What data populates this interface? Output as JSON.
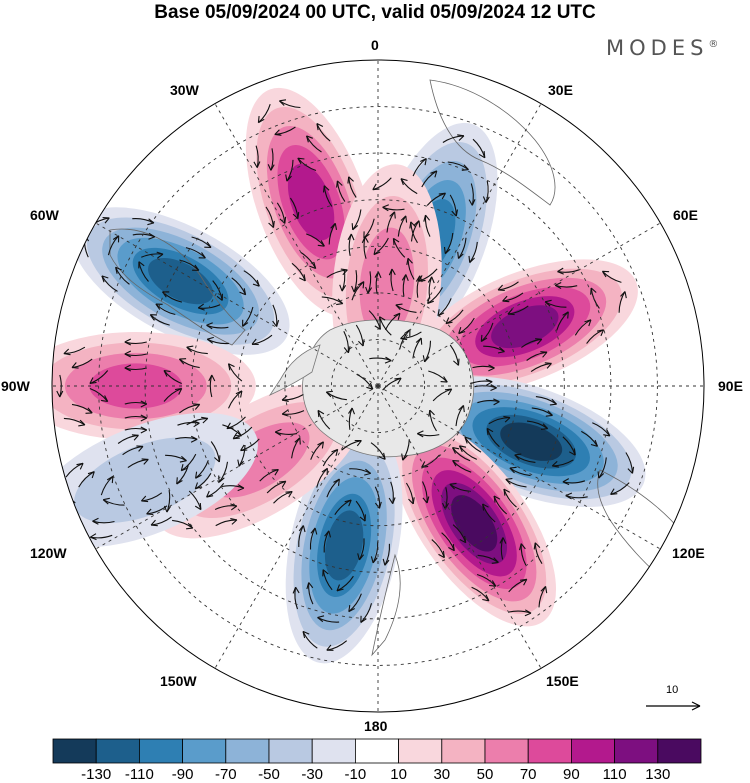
{
  "title": "Base 05/09/2024 00 UTC, valid 05/09/2024 12 UTC",
  "brand": "MODES",
  "brand_mark": "®",
  "longitude_labels": {
    "lon_0": "0",
    "lon_30e": "30E",
    "lon_60e": "60E",
    "lon_90e": "90E",
    "lon_120e": "120E",
    "lon_150e": "150E",
    "lon_180": "180",
    "lon_150w": "150W",
    "lon_120w": "120W",
    "lon_90w": "90W",
    "lon_60w": "60W",
    "lon_30w": "30W"
  },
  "reference_vector": "10",
  "colorbar": {
    "labels": [
      "-130",
      "-110",
      "-90",
      "-70",
      "-50",
      "-30",
      "-10",
      "10",
      "30",
      "50",
      "70",
      "90",
      "110",
      "130"
    ],
    "colors": [
      "#143a5a",
      "#1d5f8c",
      "#2e7fb3",
      "#5a9ccb",
      "#8db3d8",
      "#b9c9e2",
      "#dfe2ef",
      "#ffffff",
      "#f9d7dd",
      "#f4b3c2",
      "#ec7eac",
      "#dd4a9b",
      "#b3198d",
      "#7d0f80",
      "#4a0a60"
    ]
  },
  "anomaly_centers": [
    {
      "name": "positive-30w",
      "lon": -20,
      "lat": -48,
      "value": 100
    },
    {
      "name": "negative-60w",
      "lon": -62,
      "lat": -42,
      "value": -110
    },
    {
      "name": "negative-20e",
      "lon": 20,
      "lat": -56,
      "value": -100
    },
    {
      "name": "positive-0",
      "lon": 5,
      "lat": -68,
      "value": 60
    },
    {
      "name": "positive-70e",
      "lon": 68,
      "lat": -56,
      "value": 110
    },
    {
      "name": "negative-110e",
      "lon": 110,
      "lat": -55,
      "value": -130
    },
    {
      "name": "positive-145e",
      "lon": 145,
      "lat": -54,
      "value": 130
    },
    {
      "name": "negative-165w",
      "lon": -168,
      "lat": -55,
      "value": -120
    },
    {
      "name": "positive-125w",
      "lon": -122,
      "lat": -60,
      "value": 60
    },
    {
      "name": "positive-90w",
      "lon": -90,
      "lat": -38,
      "value": 70
    },
    {
      "name": "negative-115w",
      "lon": -112,
      "lat": -36,
      "value": -30
    }
  ]
}
